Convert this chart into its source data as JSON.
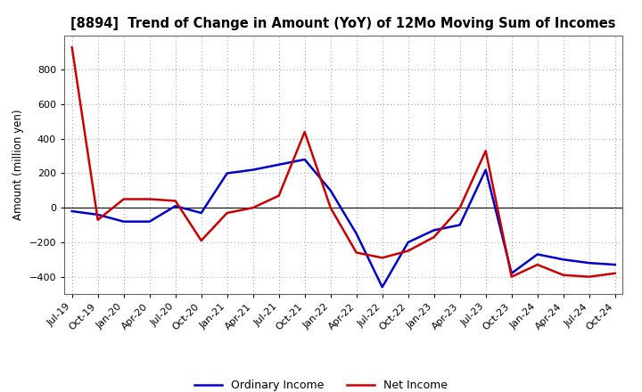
{
  "title": "[8894]  Trend of Change in Amount (YoY) of 12Mo Moving Sum of Incomes",
  "ylabel": "Amount (million yen)",
  "background_color": "#ffffff",
  "plot_bg_color": "#ffffff",
  "grid_color": "#999999",
  "xlabels": [
    "Jul-19",
    "Oct-19",
    "Jan-20",
    "Apr-20",
    "Jul-20",
    "Oct-20",
    "Jan-21",
    "Apr-21",
    "Jul-21",
    "Oct-21",
    "Jan-22",
    "Apr-22",
    "Jul-22",
    "Oct-22",
    "Jan-23",
    "Apr-23",
    "Jul-23",
    "Oct-23",
    "Jan-24",
    "Apr-24",
    "Jul-24",
    "Oct-24"
  ],
  "ordinary_income": [
    -20,
    -40,
    -80,
    -80,
    10,
    -30,
    200,
    220,
    250,
    280,
    100,
    -150,
    -460,
    -200,
    -130,
    -100,
    220,
    -380,
    -270,
    -300,
    -320,
    -330
  ],
  "net_income": [
    930,
    -70,
    50,
    50,
    40,
    -190,
    -30,
    0,
    70,
    440,
    0,
    -260,
    -290,
    -250,
    -170,
    0,
    330,
    -400,
    -330,
    -390,
    -400,
    -380
  ],
  "ordinary_color": "#0000cc",
  "net_color": "#cc0000",
  "ylim": [
    -500,
    1000
  ],
  "yticks": [
    -400,
    -200,
    0,
    200,
    400,
    600,
    800
  ],
  "legend_ordinary": "Ordinary Income",
  "legend_net": "Net Income",
  "line_width": 1.8,
  "title_fontsize": 10.5,
  "tick_fontsize": 8,
  "ylabel_fontsize": 8.5,
  "legend_fontsize": 9
}
